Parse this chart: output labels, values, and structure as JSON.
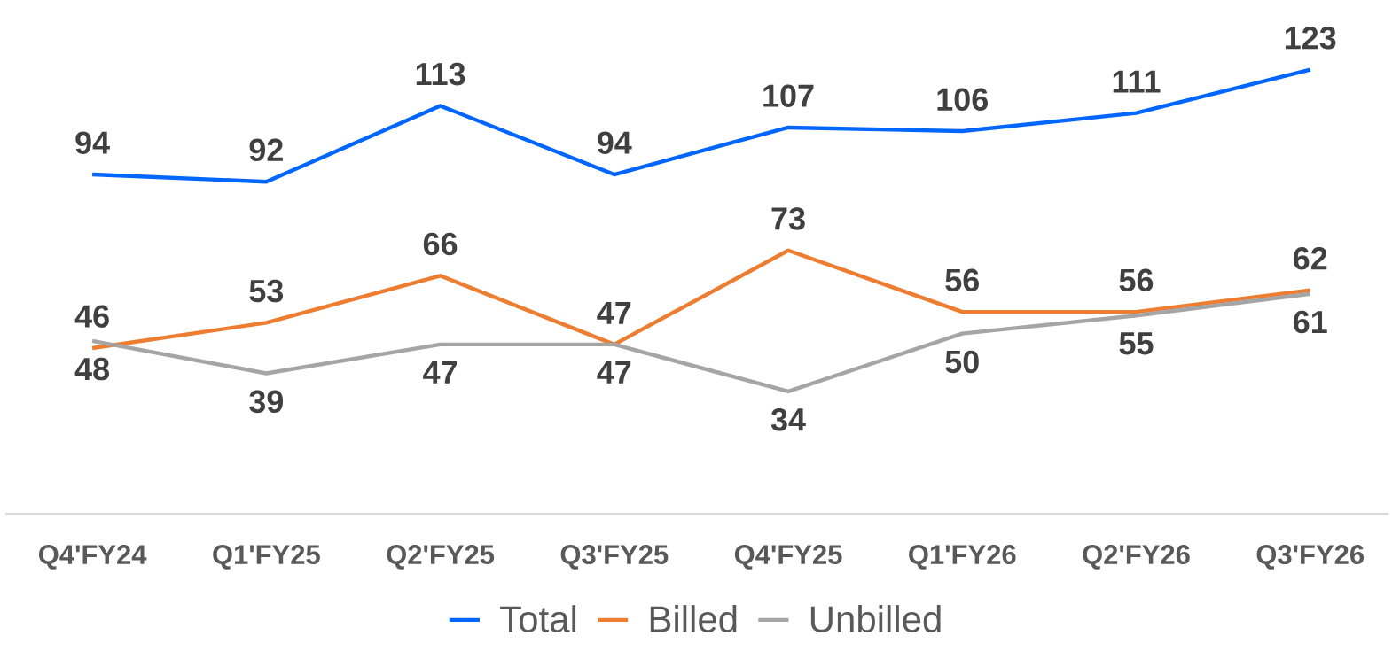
{
  "chart_data": {
    "type": "line",
    "categories": [
      "Q4'FY24",
      "Q1'FY25",
      "Q2'FY25",
      "Q3'FY25",
      "Q4'FY25",
      "Q1'FY26",
      "Q2'FY26",
      "Q3'FY26"
    ],
    "series": [
      {
        "name": "Total",
        "color": "#0066ff",
        "values": [
          94,
          92,
          113,
          94,
          107,
          106,
          111,
          123
        ]
      },
      {
        "name": "Billed",
        "color": "#ed7d31",
        "values": [
          46,
          53,
          66,
          47,
          73,
          56,
          56,
          62
        ]
      },
      {
        "name": "Unbilled",
        "color": "#a5a5a5",
        "values": [
          48,
          39,
          47,
          47,
          34,
          50,
          55,
          61
        ]
      }
    ],
    "tick_labels": "x",
    "data_labels": true,
    "legend": "bottom",
    "grid": false,
    "marker": "none",
    "line_style": "solid"
  }
}
